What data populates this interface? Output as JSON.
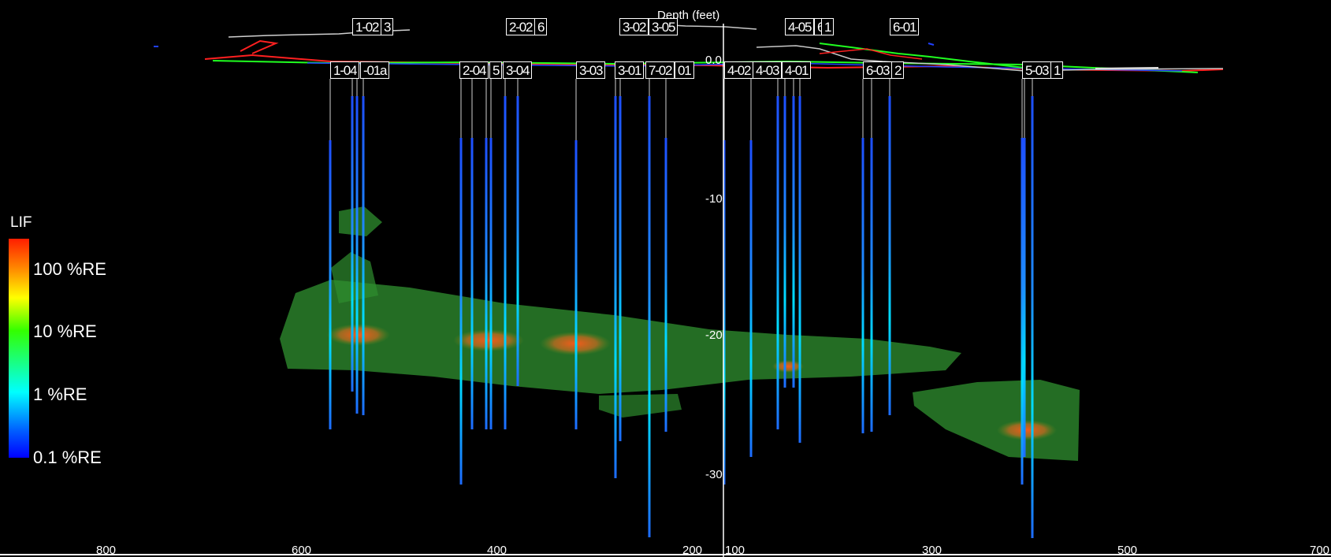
{
  "header": {
    "depth_title": "Depth (feet)"
  },
  "legend": {
    "title": "LIF",
    "labels": [
      "100 %RE",
      "10 %RE",
      "1 %RE",
      "0.1 %RE"
    ]
  },
  "depth_ticks": [
    "0.0",
    "-10",
    "-20",
    "-30"
  ],
  "x_axis_ticks": [
    "800",
    "600",
    "400",
    "200",
    "100",
    "300",
    "500",
    "700"
  ],
  "well_labels": {
    "top": [
      "1-02",
      "3",
      "2-02",
      "6",
      "3-02",
      "3-05",
      "4-05",
      "6",
      "1",
      "6-01"
    ],
    "bottom": [
      "1-04",
      "-01a",
      "2-04",
      "5",
      "3-04",
      "3-03",
      "3-01",
      "7-02",
      "01",
      "4-02",
      "4-03",
      "4-01",
      "6-03",
      "2",
      "5-03",
      "1"
    ]
  },
  "colors": {
    "background": "#000000",
    "plume": "#2f8a2f",
    "hotspot": "#e0501a",
    "profile_red": "#ff2020",
    "profile_green": "#20ff20",
    "profile_blue": "#2040ff",
    "boring_low": "#1e5aff",
    "boring_mid": "#00e0ff"
  }
}
